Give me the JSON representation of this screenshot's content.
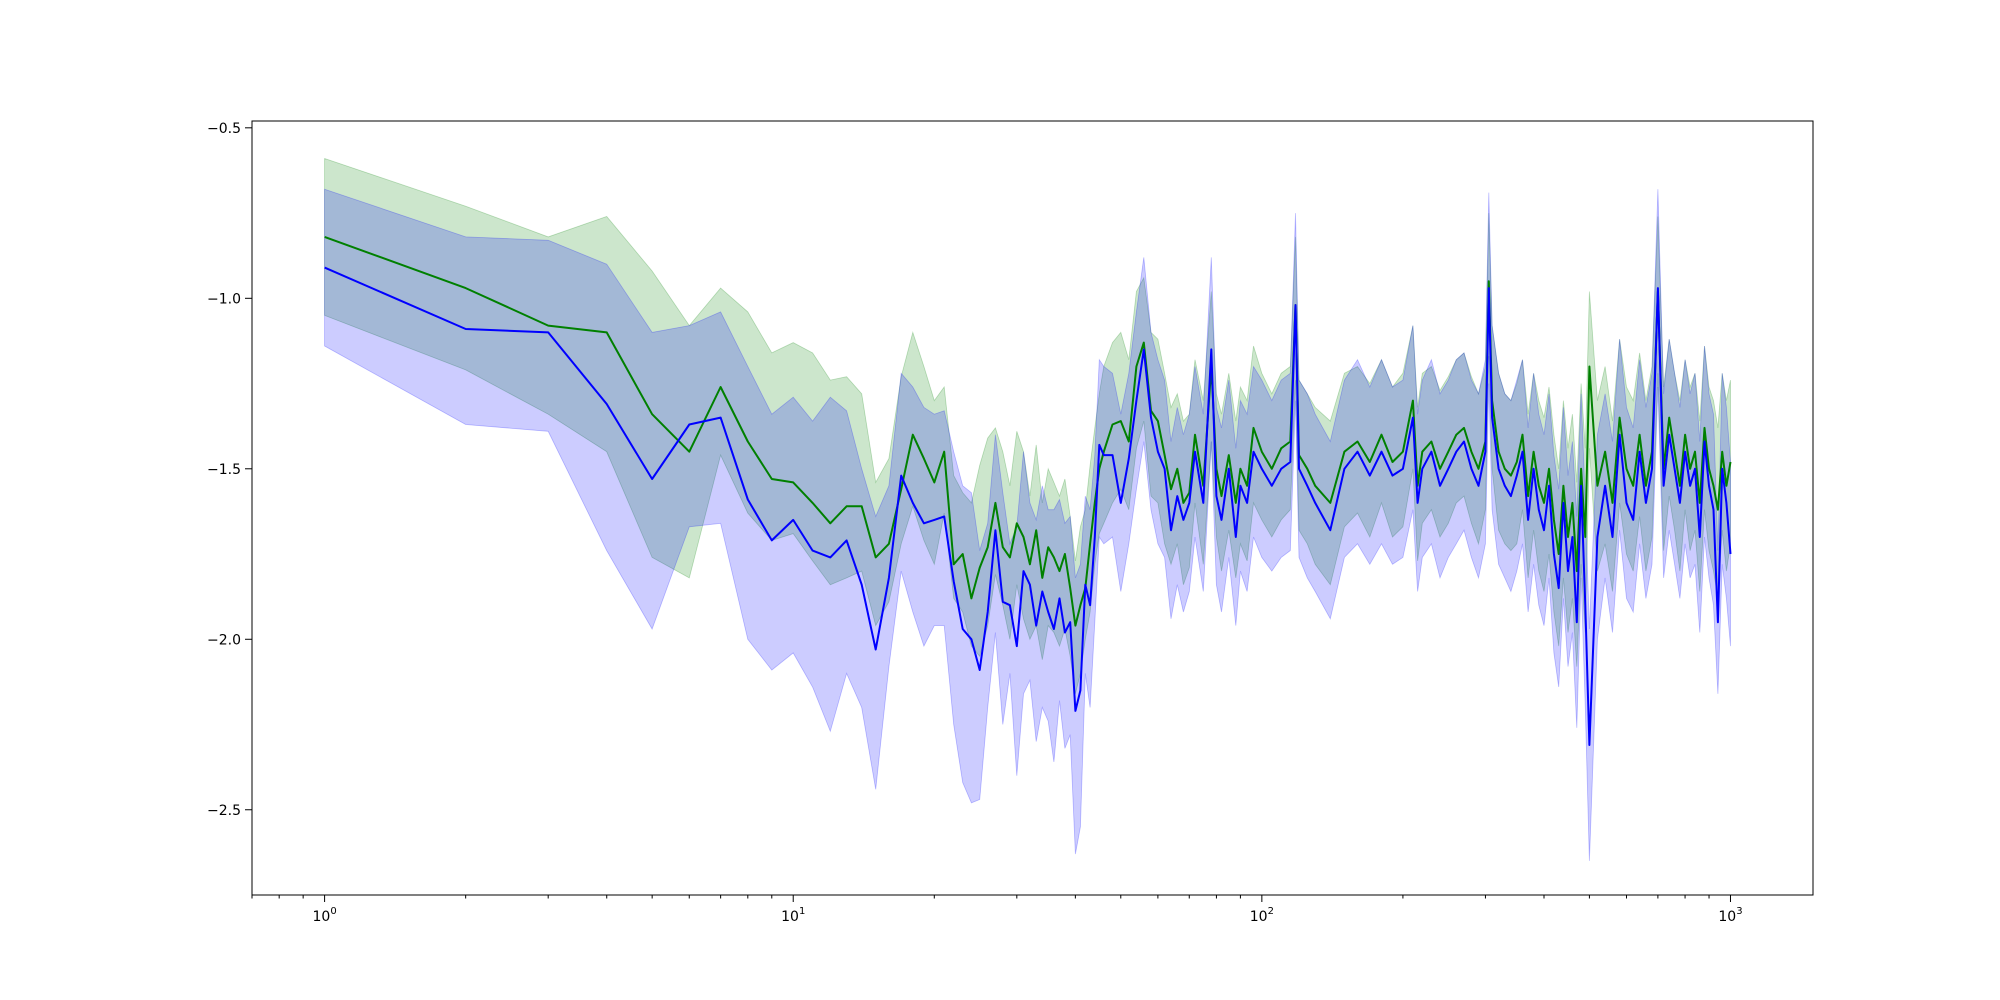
{
  "chart_data": {
    "type": "line",
    "title": "",
    "xlabel": "",
    "ylabel": "",
    "xscale": "log",
    "xlim": [
      0.7,
      1500
    ],
    "ylim": [
      -2.75,
      -0.48
    ],
    "grid": false,
    "legend": "none",
    "x_ticks": [
      {
        "value": 1,
        "base": "10",
        "exp": "0"
      },
      {
        "value": 10,
        "base": "10",
        "exp": "1"
      },
      {
        "value": 100,
        "base": "10",
        "exp": "2"
      },
      {
        "value": 1000,
        "base": "10",
        "exp": "3"
      }
    ],
    "y_ticks": [
      {
        "value": -2.5,
        "label": "−2.5"
      },
      {
        "value": -2.0,
        "label": "−2.0"
      },
      {
        "value": -1.5,
        "label": "−1.5"
      },
      {
        "value": -1.0,
        "label": "−1.0"
      },
      {
        "value": -0.5,
        "label": "−0.5"
      }
    ],
    "series": [
      {
        "color": "#008000",
        "band_color": "#008000",
        "band_opacity": 0.2,
        "x": [
          1,
          2,
          3,
          4,
          5,
          6,
          7,
          8,
          9,
          10,
          11,
          12,
          13,
          14,
          15,
          16,
          17,
          18,
          19,
          20,
          21,
          22,
          23,
          24,
          25,
          26,
          27,
          28,
          29,
          30,
          31,
          32,
          33,
          34,
          35,
          36,
          37,
          38,
          39,
          40,
          41,
          42,
          43,
          44,
          45,
          46,
          48,
          50,
          52,
          54,
          56,
          58,
          60,
          62,
          64,
          66,
          68,
          70,
          72,
          75,
          78,
          80,
          82,
          85,
          88,
          90,
          93,
          96,
          100,
          105,
          110,
          115,
          118,
          120,
          125,
          130,
          140,
          150,
          160,
          170,
          180,
          190,
          200,
          210,
          215,
          220,
          230,
          240,
          250,
          260,
          270,
          280,
          290,
          300,
          305,
          310,
          320,
          330,
          340,
          350,
          360,
          370,
          380,
          390,
          400,
          410,
          420,
          430,
          440,
          450,
          460,
          470,
          480,
          490,
          500,
          520,
          540,
          560,
          580,
          600,
          620,
          640,
          660,
          680,
          700,
          720,
          740,
          760,
          780,
          800,
          820,
          840,
          860,
          880,
          900,
          920,
          940,
          960,
          980,
          1000
        ],
        "y": [
          -0.82,
          -0.97,
          -1.08,
          -1.1,
          -1.34,
          -1.45,
          -1.26,
          -1.42,
          -1.53,
          -1.54,
          -1.6,
          -1.66,
          -1.61,
          -1.61,
          -1.76,
          -1.72,
          -1.56,
          -1.4,
          -1.47,
          -1.54,
          -1.45,
          -1.78,
          -1.75,
          -1.88,
          -1.79,
          -1.73,
          -1.6,
          -1.73,
          -1.76,
          -1.66,
          -1.7,
          -1.78,
          -1.68,
          -1.82,
          -1.73,
          -1.76,
          -1.8,
          -1.75,
          -1.85,
          -1.96,
          -1.9,
          -1.85,
          -1.72,
          -1.6,
          -1.5,
          -1.45,
          -1.37,
          -1.36,
          -1.42,
          -1.2,
          -1.13,
          -1.33,
          -1.36,
          -1.46,
          -1.56,
          -1.5,
          -1.6,
          -1.57,
          -1.4,
          -1.55,
          -1.2,
          -1.5,
          -1.58,
          -1.46,
          -1.6,
          -1.5,
          -1.55,
          -1.38,
          -1.45,
          -1.5,
          -1.44,
          -1.42,
          -1.02,
          -1.46,
          -1.5,
          -1.55,
          -1.6,
          -1.45,
          -1.42,
          -1.48,
          -1.4,
          -1.48,
          -1.45,
          -1.3,
          -1.55,
          -1.45,
          -1.42,
          -1.5,
          -1.45,
          -1.4,
          -1.38,
          -1.45,
          -1.5,
          -1.42,
          -0.95,
          -1.3,
          -1.45,
          -1.5,
          -1.52,
          -1.48,
          -1.4,
          -1.58,
          -1.45,
          -1.55,
          -1.6,
          -1.5,
          -1.65,
          -1.75,
          -1.55,
          -1.7,
          -1.6,
          -1.8,
          -1.5,
          -1.7,
          -1.2,
          -1.55,
          -1.45,
          -1.6,
          -1.35,
          -1.5,
          -1.55,
          -1.4,
          -1.55,
          -1.45,
          -0.98,
          -1.5,
          -1.35,
          -1.45,
          -1.55,
          -1.4,
          -1.5,
          -1.45,
          -1.6,
          -1.38,
          -1.5,
          -1.55,
          -1.62,
          -1.45,
          -1.55,
          -1.48
        ],
        "lower": [
          -1.05,
          -1.21,
          -1.34,
          -1.45,
          -1.76,
          -1.82,
          -1.46,
          -1.63,
          -1.71,
          -1.69,
          -1.77,
          -1.84,
          -1.82,
          -1.8,
          -1.96,
          -1.89,
          -1.72,
          -1.61,
          -1.71,
          -1.78,
          -1.63,
          -1.88,
          -1.92,
          -2.02,
          -2.05,
          -1.96,
          -1.81,
          -1.9,
          -2.0,
          -1.84,
          -1.94,
          -2.0,
          -1.96,
          -2.06,
          -1.96,
          -1.98,
          -2.02,
          -1.97,
          -2.05,
          -2.16,
          -2.1,
          -2.0,
          -1.92,
          -1.78,
          -1.69,
          -1.66,
          -1.6,
          -1.56,
          -1.62,
          -1.44,
          -1.36,
          -1.58,
          -1.6,
          -1.72,
          -1.78,
          -1.72,
          -1.84,
          -1.79,
          -1.6,
          -1.78,
          -1.42,
          -1.7,
          -1.8,
          -1.68,
          -1.82,
          -1.72,
          -1.77,
          -1.6,
          -1.65,
          -1.7,
          -1.65,
          -1.62,
          -1.24,
          -1.68,
          -1.72,
          -1.78,
          -1.84,
          -1.67,
          -1.63,
          -1.7,
          -1.6,
          -1.7,
          -1.67,
          -1.5,
          -1.77,
          -1.66,
          -1.62,
          -1.7,
          -1.66,
          -1.6,
          -1.58,
          -1.66,
          -1.72,
          -1.62,
          -1.17,
          -1.5,
          -1.68,
          -1.72,
          -1.74,
          -1.72,
          -1.62,
          -1.82,
          -1.68,
          -1.8,
          -1.86,
          -1.75,
          -1.92,
          -2.02,
          -1.82,
          -1.98,
          -1.88,
          -2.08,
          -1.78,
          -1.98,
          -1.44,
          -1.8,
          -1.72,
          -1.86,
          -1.6,
          -1.75,
          -1.8,
          -1.64,
          -1.8,
          -1.7,
          -1.22,
          -1.74,
          -1.58,
          -1.68,
          -1.8,
          -1.62,
          -1.74,
          -1.68,
          -1.86,
          -1.62,
          -1.74,
          -1.8,
          -1.88,
          -1.68,
          -1.8,
          -1.72
        ],
        "upper": [
          -0.59,
          -0.73,
          -0.82,
          -0.76,
          -0.92,
          -1.08,
          -0.97,
          -1.04,
          -1.16,
          -1.13,
          -1.16,
          -1.24,
          -1.23,
          -1.28,
          -1.54,
          -1.47,
          -1.23,
          -1.1,
          -1.2,
          -1.3,
          -1.26,
          -1.52,
          -1.57,
          -1.6,
          -1.49,
          -1.41,
          -1.38,
          -1.45,
          -1.55,
          -1.39,
          -1.45,
          -1.58,
          -1.43,
          -1.6,
          -1.5,
          -1.54,
          -1.58,
          -1.53,
          -1.64,
          -1.77,
          -1.67,
          -1.62,
          -1.49,
          -1.38,
          -1.28,
          -1.2,
          -1.13,
          -1.1,
          -1.18,
          -0.98,
          -0.94,
          -1.1,
          -1.12,
          -1.22,
          -1.32,
          -1.28,
          -1.36,
          -1.34,
          -1.18,
          -1.3,
          -0.98,
          -1.28,
          -1.34,
          -1.22,
          -1.36,
          -1.26,
          -1.3,
          -1.14,
          -1.22,
          -1.28,
          -1.22,
          -1.2,
          -0.82,
          -1.24,
          -1.28,
          -1.32,
          -1.36,
          -1.22,
          -1.2,
          -1.25,
          -1.18,
          -1.26,
          -1.22,
          -1.08,
          -1.32,
          -1.22,
          -1.2,
          -1.27,
          -1.23,
          -1.18,
          -1.16,
          -1.23,
          -1.28,
          -1.2,
          -0.75,
          -1.08,
          -1.22,
          -1.28,
          -1.3,
          -1.25,
          -1.18,
          -1.34,
          -1.22,
          -1.3,
          -1.35,
          -1.26,
          -1.4,
          -1.5,
          -1.3,
          -1.44,
          -1.34,
          -1.54,
          -1.25,
          -1.44,
          -0.98,
          -1.3,
          -1.2,
          -1.36,
          -1.12,
          -1.26,
          -1.3,
          -1.16,
          -1.3,
          -1.2,
          -0.76,
          -1.26,
          -1.12,
          -1.22,
          -1.3,
          -1.18,
          -1.26,
          -1.22,
          -1.36,
          -1.14,
          -1.26,
          -1.3,
          -1.38,
          -1.22,
          -1.3,
          -1.24
        ]
      },
      {
        "color": "#0000ff",
        "band_color": "#0000ff",
        "band_opacity": 0.2,
        "x": [
          1,
          2,
          3,
          4,
          5,
          6,
          7,
          8,
          9,
          10,
          11,
          12,
          13,
          14,
          15,
          16,
          17,
          18,
          19,
          20,
          21,
          22,
          23,
          24,
          25,
          26,
          27,
          28,
          29,
          30,
          31,
          32,
          33,
          34,
          35,
          36,
          37,
          38,
          39,
          40,
          41,
          42,
          43,
          44,
          45,
          46,
          48,
          50,
          52,
          54,
          56,
          58,
          60,
          62,
          64,
          66,
          68,
          70,
          72,
          75,
          78,
          80,
          82,
          85,
          88,
          90,
          93,
          96,
          100,
          105,
          110,
          115,
          118,
          120,
          125,
          130,
          140,
          150,
          160,
          170,
          180,
          190,
          200,
          210,
          215,
          220,
          230,
          240,
          250,
          260,
          270,
          280,
          290,
          300,
          305,
          310,
          320,
          330,
          340,
          350,
          360,
          370,
          380,
          390,
          400,
          410,
          420,
          430,
          440,
          450,
          460,
          470,
          480,
          490,
          500,
          520,
          540,
          560,
          580,
          600,
          620,
          640,
          660,
          680,
          700,
          720,
          740,
          760,
          780,
          800,
          820,
          840,
          860,
          880,
          900,
          920,
          940,
          960,
          980,
          1000
        ],
        "y": [
          -0.91,
          -1.09,
          -1.1,
          -1.31,
          -1.53,
          -1.37,
          -1.35,
          -1.59,
          -1.71,
          -1.65,
          -1.74,
          -1.76,
          -1.71,
          -1.84,
          -2.03,
          -1.82,
          -1.52,
          -1.6,
          -1.66,
          -1.65,
          -1.64,
          -1.83,
          -1.97,
          -2.0,
          -2.09,
          -1.92,
          -1.68,
          -1.89,
          -1.9,
          -2.02,
          -1.8,
          -1.84,
          -1.96,
          -1.86,
          -1.92,
          -1.97,
          -1.88,
          -1.98,
          -1.95,
          -2.21,
          -2.15,
          -1.84,
          -1.9,
          -1.7,
          -1.43,
          -1.46,
          -1.46,
          -1.6,
          -1.47,
          -1.3,
          -1.15,
          -1.35,
          -1.45,
          -1.5,
          -1.68,
          -1.58,
          -1.65,
          -1.6,
          -1.45,
          -1.6,
          -1.15,
          -1.58,
          -1.65,
          -1.5,
          -1.7,
          -1.55,
          -1.6,
          -1.45,
          -1.5,
          -1.55,
          -1.5,
          -1.48,
          -1.02,
          -1.5,
          -1.55,
          -1.6,
          -1.68,
          -1.5,
          -1.45,
          -1.52,
          -1.45,
          -1.52,
          -1.5,
          -1.35,
          -1.6,
          -1.5,
          -1.45,
          -1.55,
          -1.5,
          -1.45,
          -1.42,
          -1.5,
          -1.55,
          -1.45,
          -0.97,
          -1.35,
          -1.5,
          -1.55,
          -1.58,
          -1.52,
          -1.45,
          -1.65,
          -1.5,
          -1.62,
          -1.68,
          -1.55,
          -1.75,
          -1.85,
          -1.6,
          -1.8,
          -1.7,
          -1.95,
          -1.55,
          -1.9,
          -2.31,
          -1.7,
          -1.55,
          -1.7,
          -1.4,
          -1.6,
          -1.65,
          -1.45,
          -1.6,
          -1.5,
          -0.97,
          -1.55,
          -1.4,
          -1.5,
          -1.6,
          -1.45,
          -1.55,
          -1.5,
          -1.7,
          -1.42,
          -1.55,
          -1.62,
          -1.95,
          -1.5,
          -1.6,
          -1.75
        ],
        "lower": [
          -1.14,
          -1.37,
          -1.39,
          -1.74,
          -1.97,
          -1.67,
          -1.66,
          -2.0,
          -2.09,
          -2.04,
          -2.14,
          -2.27,
          -2.1,
          -2.2,
          -2.44,
          -2.08,
          -1.8,
          -1.92,
          -2.02,
          -1.96,
          -1.96,
          -2.25,
          -2.42,
          -2.48,
          -2.47,
          -2.2,
          -1.98,
          -2.25,
          -2.1,
          -2.4,
          -2.16,
          -2.12,
          -2.3,
          -2.2,
          -2.24,
          -2.36,
          -2.18,
          -2.32,
          -2.28,
          -2.63,
          -2.55,
          -2.1,
          -2.2,
          -1.95,
          -1.7,
          -1.72,
          -1.7,
          -1.86,
          -1.72,
          -1.56,
          -1.42,
          -1.62,
          -1.72,
          -1.76,
          -1.94,
          -1.84,
          -1.92,
          -1.86,
          -1.7,
          -1.86,
          -1.42,
          -1.84,
          -1.92,
          -1.76,
          -1.96,
          -1.8,
          -1.86,
          -1.7,
          -1.76,
          -1.8,
          -1.76,
          -1.74,
          -1.3,
          -1.76,
          -1.82,
          -1.86,
          -1.94,
          -1.76,
          -1.72,
          -1.78,
          -1.72,
          -1.78,
          -1.76,
          -1.62,
          -1.86,
          -1.76,
          -1.72,
          -1.82,
          -1.76,
          -1.72,
          -1.68,
          -1.76,
          -1.82,
          -1.72,
          -1.25,
          -1.62,
          -1.78,
          -1.82,
          -1.86,
          -1.8,
          -1.72,
          -1.92,
          -1.78,
          -1.9,
          -1.96,
          -1.82,
          -2.04,
          -2.14,
          -1.88,
          -2.08,
          -1.98,
          -2.26,
          -1.82,
          -2.2,
          -2.65,
          -2.0,
          -1.82,
          -1.98,
          -1.68,
          -1.88,
          -1.92,
          -1.72,
          -1.88,
          -1.78,
          -1.26,
          -1.82,
          -1.68,
          -1.78,
          -1.88,
          -1.72,
          -1.82,
          -1.78,
          -1.98,
          -1.7,
          -1.82,
          -1.9,
          -2.16,
          -1.78,
          -1.88,
          -2.02
        ],
        "upper": [
          -0.68,
          -0.82,
          -0.83,
          -0.9,
          -1.1,
          -1.08,
          -1.04,
          -1.2,
          -1.34,
          -1.29,
          -1.36,
          -1.29,
          -1.33,
          -1.5,
          -1.64,
          -1.55,
          -1.22,
          -1.26,
          -1.32,
          -1.34,
          -1.33,
          -1.45,
          -1.55,
          -1.57,
          -1.74,
          -1.66,
          -1.4,
          -1.57,
          -1.72,
          -1.67,
          -1.45,
          -1.6,
          -1.65,
          -1.55,
          -1.62,
          -1.62,
          -1.59,
          -1.66,
          -1.64,
          -1.82,
          -1.78,
          -1.58,
          -1.62,
          -1.46,
          -1.18,
          -1.2,
          -1.22,
          -1.34,
          -1.22,
          -1.04,
          -0.88,
          -1.1,
          -1.18,
          -1.24,
          -1.42,
          -1.32,
          -1.4,
          -1.34,
          -1.2,
          -1.34,
          -0.88,
          -1.32,
          -1.38,
          -1.24,
          -1.44,
          -1.3,
          -1.34,
          -1.2,
          -1.24,
          -1.3,
          -1.24,
          -1.22,
          -0.75,
          -1.24,
          -1.28,
          -1.34,
          -1.42,
          -1.24,
          -1.18,
          -1.26,
          -1.18,
          -1.26,
          -1.24,
          -1.08,
          -1.34,
          -1.24,
          -1.18,
          -1.28,
          -1.24,
          -1.18,
          -1.16,
          -1.24,
          -1.28,
          -1.18,
          -0.69,
          -1.08,
          -1.22,
          -1.28,
          -1.3,
          -1.24,
          -1.18,
          -1.38,
          -1.22,
          -1.34,
          -1.4,
          -1.28,
          -1.46,
          -1.56,
          -1.32,
          -1.52,
          -1.42,
          -1.64,
          -1.28,
          -1.6,
          -1.97,
          -1.4,
          -1.28,
          -1.42,
          -1.12,
          -1.32,
          -1.38,
          -1.18,
          -1.32,
          -1.22,
          -0.68,
          -1.28,
          -1.12,
          -1.22,
          -1.32,
          -1.18,
          -1.28,
          -1.22,
          -1.42,
          -1.14,
          -1.28,
          -1.34,
          -1.74,
          -1.22,
          -1.32,
          -1.48
        ]
      }
    ]
  }
}
